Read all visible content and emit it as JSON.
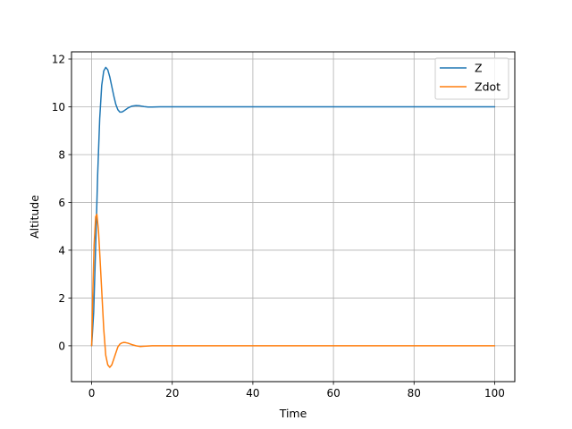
{
  "chart_data": {
    "type": "line",
    "title": "",
    "xlabel": "Time",
    "ylabel": "Altitude",
    "xlim": [
      -5,
      105
    ],
    "ylim": [
      -1.5,
      12.3
    ],
    "xticks": [
      0,
      20,
      40,
      60,
      80,
      100
    ],
    "yticks": [
      0,
      2,
      4,
      6,
      8,
      10,
      12
    ],
    "grid": true,
    "legend_position": "top-right",
    "series": [
      {
        "name": "Z",
        "color": "#1f77b4",
        "x": [
          0,
          0.5,
          1,
          1.5,
          2,
          2.5,
          3,
          3.5,
          4,
          4.5,
          5,
          5.5,
          6,
          6.5,
          7,
          7.5,
          8,
          9,
          10,
          11,
          12,
          13,
          14,
          15,
          17,
          20,
          25,
          30,
          40,
          50,
          60,
          70,
          80,
          90,
          100
        ],
        "y": [
          0,
          1.4,
          4.2,
          7.2,
          9.5,
          10.9,
          11.5,
          11.65,
          11.55,
          11.25,
          10.85,
          10.45,
          10.1,
          9.88,
          9.78,
          9.78,
          9.83,
          9.95,
          10.03,
          10.05,
          10.04,
          10.01,
          9.99,
          9.99,
          10.0,
          10.0,
          10.0,
          10.0,
          10.0,
          10.0,
          10.0,
          10.0,
          10.0,
          10.0,
          10.0
        ]
      },
      {
        "name": "Zdot",
        "color": "#ff7f0e",
        "x": [
          0,
          0.3,
          0.6,
          1,
          1.3,
          1.7,
          2,
          2.5,
          3,
          3.5,
          4,
          4.5,
          5,
          5.5,
          6,
          6.5,
          7,
          7.5,
          8,
          8.5,
          9,
          10,
          11,
          12,
          13,
          14,
          15,
          17,
          20,
          30,
          40,
          50,
          60,
          70,
          80,
          90,
          100
        ],
        "y": [
          0,
          2.3,
          4.2,
          5.4,
          5.5,
          4.8,
          3.9,
          2.3,
          0.7,
          -0.4,
          -0.8,
          -0.9,
          -0.8,
          -0.55,
          -0.3,
          -0.05,
          0.07,
          0.12,
          0.14,
          0.13,
          0.11,
          0.05,
          0.0,
          -0.03,
          -0.02,
          -0.01,
          0.0,
          0.0,
          0.0,
          0.0,
          0.0,
          0.0,
          0.0,
          0.0,
          0.0,
          0.0,
          0.0
        ]
      }
    ]
  }
}
